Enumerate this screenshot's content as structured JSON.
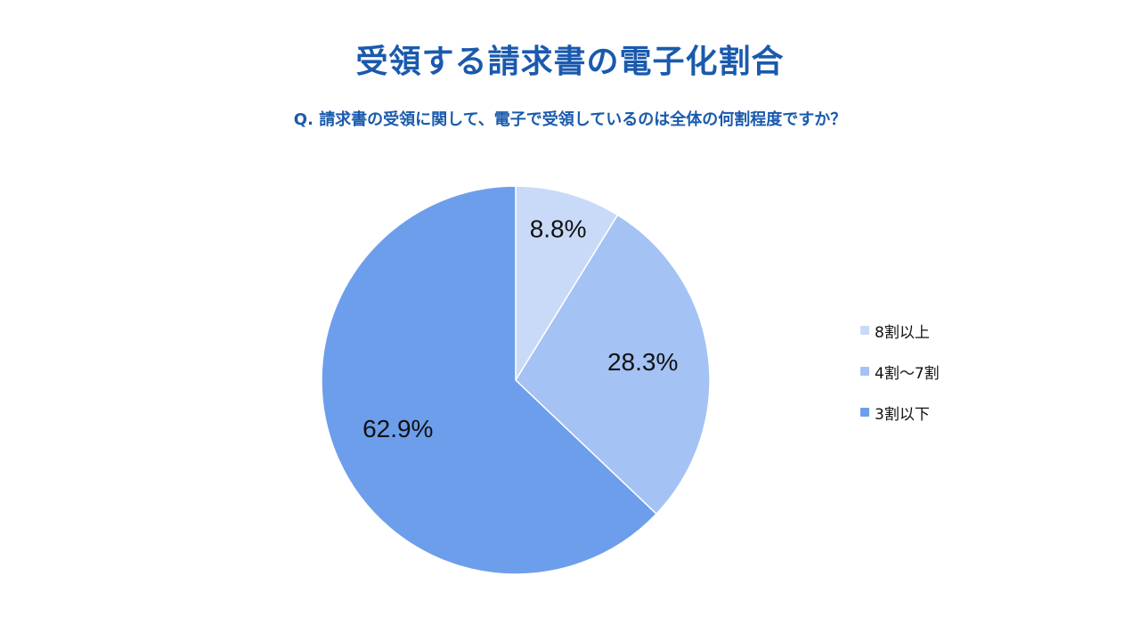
{
  "header": {
    "title": "受領する請求書の電子化割合",
    "question": "Q. 請求書の受領に関して、電子で受領しているのは全体の何割程度ですか？"
  },
  "chart_data": {
    "type": "pie",
    "title": "受領する請求書の電子化割合",
    "subtitle": "Q. 請求書の受領に関して、電子で受領しているのは全体の何割程度ですか？",
    "slices": [
      {
        "label": "8割以上",
        "value": 8.8,
        "display": "8.8%",
        "color": "#c9daf8"
      },
      {
        "label": "4割〜7割",
        "value": 28.3,
        "display": "28.3%",
        "color": "#a4c2f4"
      },
      {
        "label": "3割以下",
        "value": 62.9,
        "display": "62.9%",
        "color": "#6d9eeb"
      }
    ],
    "start_angle": "top",
    "direction": "clockwise",
    "legend_position": "right"
  }
}
